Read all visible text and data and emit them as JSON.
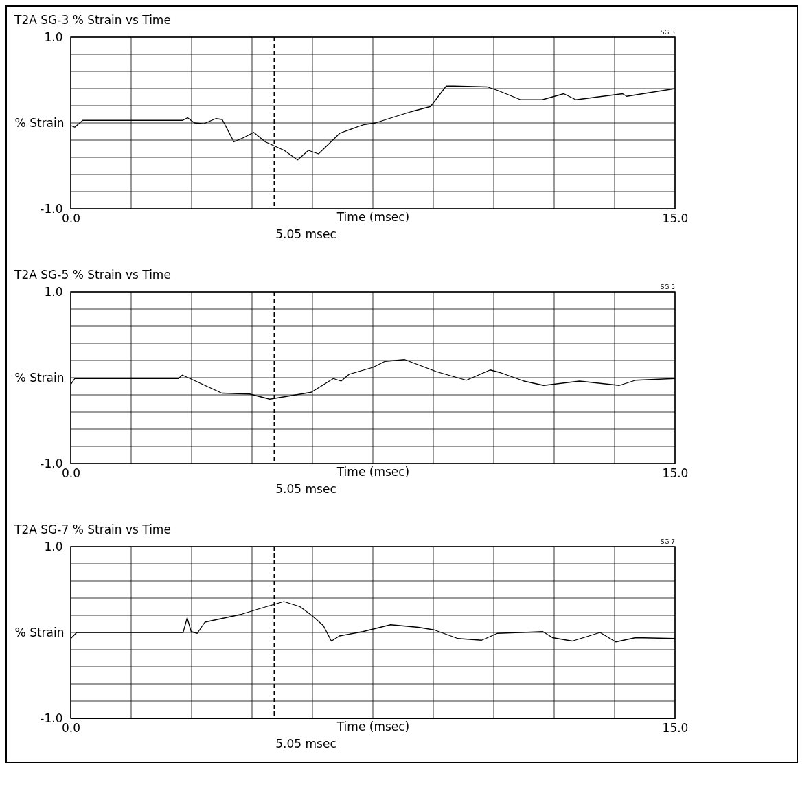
{
  "chart_data": [
    {
      "type": "line",
      "title": "T2A SG-3  % Strain vs Time",
      "xlabel": "Time (msec)",
      "ylabel": "% Strain",
      "annotations": [
        "SG 3"
      ],
      "x": [
        0,
        0.1,
        0.3,
        2.78,
        2.9,
        3.07,
        3.3,
        3.6,
        3.76,
        4.05,
        4.3,
        4.54,
        4.83,
        5.3,
        5.63,
        5.9,
        6.15,
        6.68,
        7.27,
        7.56,
        8.44,
        8.93,
        9.32,
        9.51,
        10.34,
        10.59,
        11.17,
        11.7,
        12.24,
        12.54,
        13.7,
        13.8,
        15
      ],
      "series": [
        {
          "color": "#000000",
          "values": [
            -0.03,
            -0.05,
            0.03,
            0.03,
            0.06,
            0.0,
            -0.01,
            0.05,
            0.04,
            -0.22,
            -0.17,
            -0.11,
            -0.22,
            -0.32,
            -0.43,
            -0.32,
            -0.36,
            -0.12,
            -0.02,
            0.0,
            0.13,
            0.19,
            0.43,
            0.43,
            0.42,
            0.38,
            0.27,
            0.27,
            0.34,
            0.27,
            0.34,
            0.31,
            0.4
          ]
        }
      ],
      "xlim": [
        0,
        15
      ],
      "ylim": [
        -1,
        1
      ],
      "xticks": [
        {
          "value": 0,
          "label": "0.0"
        },
        {
          "value": 1.5,
          "label": null
        },
        {
          "value": 3,
          "label": null
        },
        {
          "value": 4.5,
          "label": null
        },
        {
          "value": 6,
          "label": null
        },
        {
          "value": 7.5,
          "label": null
        },
        {
          "value": 9,
          "label": null
        },
        {
          "value": 10.5,
          "label": null
        },
        {
          "value": 12,
          "label": null
        },
        {
          "value": 13.5,
          "label": null
        },
        {
          "value": 15,
          "label": "15.0"
        }
      ],
      "yticks": [
        {
          "value": -1,
          "label": "-1.0"
        },
        {
          "value": -0.8,
          "label": null
        },
        {
          "value": -0.6,
          "label": null
        },
        {
          "value": -0.4,
          "label": null
        },
        {
          "value": -0.2,
          "label": null
        },
        {
          "value": 0,
          "label": null
        },
        {
          "value": 0.2,
          "label": null
        },
        {
          "value": 0.4,
          "label": null
        },
        {
          "value": 0.6,
          "label": null
        },
        {
          "value": 0.8,
          "label": null
        },
        {
          "value": 1,
          "label": "1.0"
        }
      ],
      "ref_lines": [
        {
          "axis": "x",
          "value": 5.05,
          "label": "5.05 msec",
          "line_style": "dashed"
        }
      ],
      "grid": true,
      "marker": "none",
      "line_style": "solid"
    },
    {
      "type": "line",
      "title": "T2A SG-5  % Strain vs Time",
      "xlabel": "Time (msec)",
      "ylabel": "% Strain",
      "annotations": [
        "SG 5"
      ],
      "x": [
        0,
        0.1,
        2.67,
        2.77,
        2.96,
        3.75,
        4.44,
        4.94,
        5.33,
        5.97,
        6.52,
        6.71,
        6.91,
        7.5,
        7.8,
        8.29,
        9.08,
        9.82,
        10.41,
        10.66,
        11.25,
        11.74,
        12.63,
        13.62,
        14.02,
        15
      ],
      "series": [
        {
          "color": "#000000",
          "values": [
            -0.08,
            -0.01,
            -0.01,
            0.03,
            -0.01,
            -0.18,
            -0.19,
            -0.25,
            -0.22,
            -0.17,
            -0.01,
            -0.04,
            0.04,
            0.12,
            0.19,
            0.21,
            0.07,
            -0.03,
            0.09,
            0.06,
            -0.04,
            -0.09,
            -0.04,
            -0.09,
            -0.03,
            -0.01
          ]
        }
      ],
      "xlim": [
        0,
        15
      ],
      "ylim": [
        -1,
        1
      ],
      "xticks": [
        {
          "value": 0,
          "label": "0.0"
        },
        {
          "value": 1.5,
          "label": null
        },
        {
          "value": 3,
          "label": null
        },
        {
          "value": 4.5,
          "label": null
        },
        {
          "value": 6,
          "label": null
        },
        {
          "value": 7.5,
          "label": null
        },
        {
          "value": 9,
          "label": null
        },
        {
          "value": 10.5,
          "label": null
        },
        {
          "value": 12,
          "label": null
        },
        {
          "value": 13.5,
          "label": null
        },
        {
          "value": 15,
          "label": "15.0"
        }
      ],
      "yticks": [
        {
          "value": -1,
          "label": "-1.0"
        },
        {
          "value": -0.8,
          "label": null
        },
        {
          "value": -0.6,
          "label": null
        },
        {
          "value": -0.4,
          "label": null
        },
        {
          "value": -0.2,
          "label": null
        },
        {
          "value": 0,
          "label": null
        },
        {
          "value": 0.2,
          "label": null
        },
        {
          "value": 0.4,
          "label": null
        },
        {
          "value": 0.6,
          "label": null
        },
        {
          "value": 0.8,
          "label": null
        },
        {
          "value": 1,
          "label": "1.0"
        }
      ],
      "ref_lines": [
        {
          "axis": "x",
          "value": 5.05,
          "label": "5.05 msec",
          "line_style": "dashed"
        }
      ],
      "grid": true,
      "marker": "none",
      "line_style": "solid"
    },
    {
      "type": "line",
      "title": "T2A SG-7  % Strain vs Time",
      "xlabel": "Time (msec)",
      "ylabel": "% Strain",
      "annotations": [
        "SG 7"
      ],
      "x": [
        0,
        0.15,
        2.79,
        2.89,
        2.99,
        3.14,
        3.33,
        4.22,
        4.71,
        5.29,
        5.69,
        5.98,
        6.27,
        6.47,
        6.67,
        7.25,
        7.94,
        8.63,
        9.02,
        9.61,
        10.2,
        10.59,
        11.72,
        11.96,
        12.45,
        13.14,
        13.53,
        14.02,
        15
      ],
      "series": [
        {
          "color": "#000000",
          "values": [
            -0.07,
            0.0,
            0.0,
            0.17,
            0.01,
            -0.01,
            0.12,
            0.21,
            0.28,
            0.36,
            0.3,
            0.2,
            0.08,
            -0.1,
            -0.04,
            0.01,
            0.09,
            0.06,
            0.03,
            -0.07,
            -0.09,
            -0.01,
            0.01,
            -0.06,
            -0.1,
            0.0,
            -0.11,
            -0.06,
            -0.07
          ]
        }
      ],
      "xlim": [
        0,
        15
      ],
      "ylim": [
        -1,
        1
      ],
      "xticks": [
        {
          "value": 0,
          "label": "0.0"
        },
        {
          "value": 1.5,
          "label": null
        },
        {
          "value": 3,
          "label": null
        },
        {
          "value": 4.5,
          "label": null
        },
        {
          "value": 6,
          "label": null
        },
        {
          "value": 7.5,
          "label": null
        },
        {
          "value": 9,
          "label": null
        },
        {
          "value": 10.5,
          "label": null
        },
        {
          "value": 12,
          "label": null
        },
        {
          "value": 13.5,
          "label": null
        },
        {
          "value": 15,
          "label": "15.0"
        }
      ],
      "yticks": [
        {
          "value": -1,
          "label": "-1.0"
        },
        {
          "value": -0.8,
          "label": null
        },
        {
          "value": -0.6,
          "label": null
        },
        {
          "value": -0.4,
          "label": null
        },
        {
          "value": -0.2,
          "label": null
        },
        {
          "value": 0,
          "label": null
        },
        {
          "value": 0.2,
          "label": null
        },
        {
          "value": 0.4,
          "label": null
        },
        {
          "value": 0.6,
          "label": null
        },
        {
          "value": 0.8,
          "label": null
        },
        {
          "value": 1,
          "label": "1.0"
        }
      ],
      "ref_lines": [
        {
          "axis": "x",
          "value": 5.05,
          "label": "5.05 msec",
          "line_style": "dashed"
        }
      ],
      "grid": true,
      "marker": "none",
      "line_style": "solid"
    }
  ]
}
